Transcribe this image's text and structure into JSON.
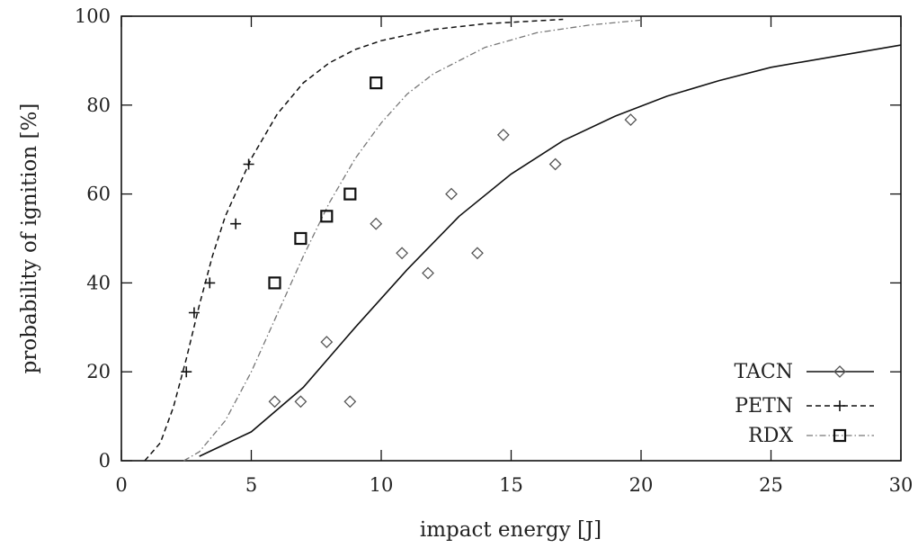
{
  "chart_data": {
    "type": "scatter",
    "xlabel": "impact energy [J]",
    "ylabel": "probability of ignition [%]",
    "xlim": [
      0,
      30
    ],
    "ylim": [
      0,
      100
    ],
    "x_ticks": [
      0,
      5,
      10,
      15,
      20,
      25,
      30
    ],
    "y_ticks": [
      0,
      20,
      40,
      60,
      80,
      100
    ],
    "grid": false,
    "legend_position": "bottom-right",
    "series": [
      {
        "name": "TACN",
        "marker": "diamond",
        "line_style": "solid",
        "points": [
          {
            "x": 5.9,
            "y": 13.3
          },
          {
            "x": 6.9,
            "y": 13.3
          },
          {
            "x": 7.9,
            "y": 26.7
          },
          {
            "x": 8.8,
            "y": 13.3
          },
          {
            "x": 9.8,
            "y": 53.3
          },
          {
            "x": 10.8,
            "y": 46.7
          },
          {
            "x": 11.8,
            "y": 42.2
          },
          {
            "x": 12.7,
            "y": 60.0
          },
          {
            "x": 13.7,
            "y": 46.7
          },
          {
            "x": 14.7,
            "y": 73.3
          },
          {
            "x": 16.7,
            "y": 66.7
          },
          {
            "x": 19.6,
            "y": 76.7
          }
        ],
        "fit": [
          {
            "x": 3.0,
            "y": 1.0
          },
          {
            "x": 5.0,
            "y": 6.5
          },
          {
            "x": 7.0,
            "y": 16.5
          },
          {
            "x": 9.0,
            "y": 30.0
          },
          {
            "x": 11.0,
            "y": 43.0
          },
          {
            "x": 13.0,
            "y": 55.0
          },
          {
            "x": 15.0,
            "y": 64.5
          },
          {
            "x": 17.0,
            "y": 72.0
          },
          {
            "x": 19.0,
            "y": 77.5
          },
          {
            "x": 21.0,
            "y": 82.0
          },
          {
            "x": 23.0,
            "y": 85.5
          },
          {
            "x": 25.0,
            "y": 88.5
          },
          {
            "x": 27.0,
            "y": 90.5
          },
          {
            "x": 30.0,
            "y": 93.5
          }
        ]
      },
      {
        "name": "PETN",
        "marker": "plus",
        "line_style": "dashed",
        "points": [
          {
            "x": 2.5,
            "y": 20.0
          },
          {
            "x": 2.8,
            "y": 33.3
          },
          {
            "x": 3.4,
            "y": 40.0
          },
          {
            "x": 4.4,
            "y": 53.3
          },
          {
            "x": 4.9,
            "y": 66.7
          }
        ],
        "fit": [
          {
            "x": 0.9,
            "y": 0.0
          },
          {
            "x": 1.5,
            "y": 4.0
          },
          {
            "x": 2.0,
            "y": 12.0
          },
          {
            "x": 2.5,
            "y": 23.0
          },
          {
            "x": 3.0,
            "y": 35.0
          },
          {
            "x": 3.5,
            "y": 46.0
          },
          {
            "x": 4.0,
            "y": 55.0
          },
          {
            "x": 5.0,
            "y": 68.0
          },
          {
            "x": 6.0,
            "y": 78.0
          },
          {
            "x": 7.0,
            "y": 85.0
          },
          {
            "x": 8.0,
            "y": 89.5
          },
          {
            "x": 9.0,
            "y": 92.5
          },
          {
            "x": 10.0,
            "y": 94.5
          },
          {
            "x": 12.0,
            "y": 97.0
          },
          {
            "x": 14.0,
            "y": 98.3
          },
          {
            "x": 17.0,
            "y": 99.3
          }
        ]
      },
      {
        "name": "RDX",
        "marker": "square",
        "line_style": "dash-dot",
        "points": [
          {
            "x": 5.9,
            "y": 40.0
          },
          {
            "x": 6.9,
            "y": 50.0
          },
          {
            "x": 7.9,
            "y": 55.0
          },
          {
            "x": 8.8,
            "y": 60.0
          },
          {
            "x": 9.8,
            "y": 85.0
          }
        ],
        "fit": [
          {
            "x": 2.4,
            "y": 0.0
          },
          {
            "x": 3.0,
            "y": 2.0
          },
          {
            "x": 4.0,
            "y": 9.0
          },
          {
            "x": 5.0,
            "y": 20.0
          },
          {
            "x": 6.0,
            "y": 33.0
          },
          {
            "x": 7.0,
            "y": 46.0
          },
          {
            "x": 8.0,
            "y": 58.0
          },
          {
            "x": 9.0,
            "y": 68.0
          },
          {
            "x": 10.0,
            "y": 76.0
          },
          {
            "x": 11.0,
            "y": 82.5
          },
          {
            "x": 12.0,
            "y": 87.0
          },
          {
            "x": 14.0,
            "y": 93.0
          },
          {
            "x": 16.0,
            "y": 96.3
          },
          {
            "x": 18.0,
            "y": 98.0
          },
          {
            "x": 20.0,
            "y": 99.1
          }
        ]
      }
    ]
  }
}
